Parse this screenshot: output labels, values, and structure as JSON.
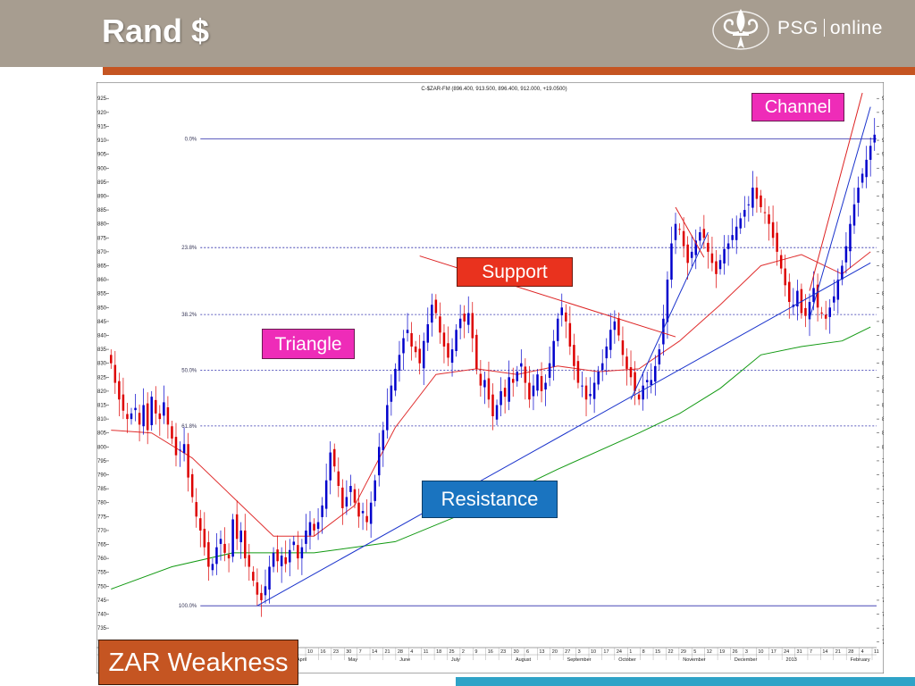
{
  "header": {
    "title": "Rand $",
    "logo_brand": "PSG",
    "logo_suffix": "online"
  },
  "callouts": {
    "channel": "Channel",
    "support": "Support",
    "triangle": "Triangle",
    "resistance": "Resistance",
    "zar": "ZAR Weakness"
  },
  "colors": {
    "header_bg": "#a79d90",
    "accent_bar": "#c55522",
    "bottom_bar": "#2fa3c7",
    "candle_up": "#0000cc",
    "candle_down": "#dd0000",
    "ma_short": "#e03030",
    "ma_long": "#119911",
    "trendline": "#1a33cc",
    "fib_line": "#2a2aaa"
  },
  "chart_data": {
    "type": "candlestick",
    "title": "C-$ZAR-FM (896.400, 913.500, 896.400, 912.000, +19.0500)",
    "xlabel": "",
    "ylabel": "",
    "ylim": [
      728,
      927
    ],
    "y_ticks": [
      730,
      735,
      740,
      745,
      750,
      755,
      760,
      765,
      770,
      775,
      780,
      785,
      790,
      795,
      800,
      805,
      810,
      815,
      820,
      825,
      830,
      835,
      840,
      845,
      850,
      855,
      860,
      865,
      870,
      875,
      880,
      885,
      890,
      895,
      900,
      905,
      910,
      915,
      920,
      925
    ],
    "fib_levels": [
      {
        "label": "0.0%",
        "value": 910.5
      },
      {
        "label": "23.8%",
        "value": 871.5
      },
      {
        "label": "38.2%",
        "value": 847.5
      },
      {
        "label": "50.0%",
        "value": 827.5
      },
      {
        "label": "61.8%",
        "value": 807.5
      },
      {
        "label": "100.0%",
        "value": 743
      }
    ],
    "x_day_labels": [
      "10",
      "16",
      "23",
      "30",
      "7",
      "14",
      "21",
      "28",
      "4",
      "11",
      "18",
      "25",
      "2",
      "9",
      "16",
      "23",
      "30",
      "6",
      "13",
      "20",
      "27",
      "3",
      "10",
      "17",
      "24",
      "1",
      "8",
      "15",
      "22",
      "29",
      "5",
      "12",
      "19",
      "26",
      "3",
      "10",
      "17",
      "24",
      "31",
      "7",
      "14",
      "21",
      "28",
      "4",
      "11"
    ],
    "x_month_labels": [
      "April",
      "May",
      "June",
      "July",
      "August",
      "September",
      "October",
      "November",
      "December",
      "2013",
      "February"
    ],
    "closes": [
      830,
      823,
      817,
      813,
      810,
      812,
      814,
      808,
      815,
      806,
      818,
      812,
      810,
      816,
      808,
      803,
      797,
      799,
      801,
      789,
      782,
      775,
      770,
      764,
      757,
      758,
      764,
      767,
      762,
      760,
      774,
      767,
      770,
      760,
      757,
      752,
      747,
      745,
      750,
      757,
      762,
      759,
      761,
      758,
      763,
      766,
      760,
      764,
      770,
      773,
      770,
      773,
      779,
      788,
      798,
      793,
      786,
      778,
      782,
      786,
      780,
      775,
      777,
      773,
      780,
      788,
      800,
      806,
      815,
      822,
      828,
      833,
      839,
      842,
      836,
      834,
      830,
      838,
      844,
      851,
      848,
      841,
      836,
      832,
      835,
      842,
      846,
      845,
      848,
      839,
      828,
      822,
      824,
      817,
      811,
      815,
      820,
      818,
      825,
      823,
      827,
      830,
      823,
      817,
      822,
      826,
      820,
      823,
      830,
      838,
      846,
      850,
      845,
      836,
      829,
      823,
      822,
      817,
      819,
      823,
      827,
      830,
      836,
      842,
      845,
      840,
      833,
      828,
      825,
      820,
      817,
      822,
      824,
      824,
      829,
      835,
      846,
      860,
      873,
      880,
      878,
      872,
      866,
      870,
      874,
      877,
      875,
      870,
      866,
      862,
      867,
      871,
      873,
      876,
      879,
      882,
      885,
      887,
      893,
      889,
      886,
      884,
      880,
      875,
      870,
      864,
      858,
      852,
      851,
      856,
      848,
      847,
      852,
      857,
      850,
      848,
      846,
      850,
      854,
      860,
      865,
      872,
      880,
      887,
      893,
      898,
      903,
      908,
      912
    ],
    "ma_short": [
      {
        "i": 0,
        "v": 806
      },
      {
        "i": 10,
        "v": 805
      },
      {
        "i": 20,
        "v": 796
      },
      {
        "i": 30,
        "v": 782
      },
      {
        "i": 40,
        "v": 768
      },
      {
        "i": 50,
        "v": 768
      },
      {
        "i": 60,
        "v": 779
      },
      {
        "i": 70,
        "v": 807
      },
      {
        "i": 80,
        "v": 826
      },
      {
        "i": 90,
        "v": 828
      },
      {
        "i": 100,
        "v": 826
      },
      {
        "i": 110,
        "v": 829
      },
      {
        "i": 120,
        "v": 827
      },
      {
        "i": 130,
        "v": 828
      },
      {
        "i": 140,
        "v": 838
      },
      {
        "i": 150,
        "v": 851
      },
      {
        "i": 160,
        "v": 865
      },
      {
        "i": 170,
        "v": 869
      },
      {
        "i": 180,
        "v": 862
      },
      {
        "i": 187,
        "v": 870
      }
    ],
    "ma_long": [
      {
        "i": 0,
        "v": 749
      },
      {
        "i": 15,
        "v": 757
      },
      {
        "i": 30,
        "v": 762
      },
      {
        "i": 50,
        "v": 762
      },
      {
        "i": 70,
        "v": 766
      },
      {
        "i": 90,
        "v": 778
      },
      {
        "i": 110,
        "v": 792
      },
      {
        "i": 130,
        "v": 805
      },
      {
        "i": 140,
        "v": 812
      },
      {
        "i": 150,
        "v": 821
      },
      {
        "i": 160,
        "v": 833
      },
      {
        "i": 170,
        "v": 836
      },
      {
        "i": 180,
        "v": 838
      },
      {
        "i": 187,
        "v": 843
      }
    ],
    "trendlines": [
      {
        "name": "rising support",
        "from": {
          "i": 36,
          "v": 743
        },
        "to": {
          "i": 187,
          "v": 866
        },
        "color": "blue"
      },
      {
        "name": "triangle top",
        "from": {
          "i": 76,
          "v": 868.5
        },
        "to": {
          "i": 139,
          "v": 839.5
        },
        "color": "red"
      },
      {
        "name": "channel lower",
        "from": {
          "i": 172,
          "v": 846
        },
        "to": {
          "i": 187,
          "v": 922
        },
        "color": "blue"
      },
      {
        "name": "channel upper",
        "from": {
          "i": 172,
          "v": 856
        },
        "to": {
          "i": 185,
          "v": 927
        },
        "color": "red"
      },
      {
        "name": "trend up",
        "from": {
          "i": 128,
          "v": 817
        },
        "to": {
          "i": 147,
          "v": 877
        },
        "color": "blue"
      },
      {
        "name": "trend down",
        "from": {
          "i": 139,
          "v": 886
        },
        "to": {
          "i": 146,
          "v": 868
        },
        "color": "red"
      }
    ]
  }
}
